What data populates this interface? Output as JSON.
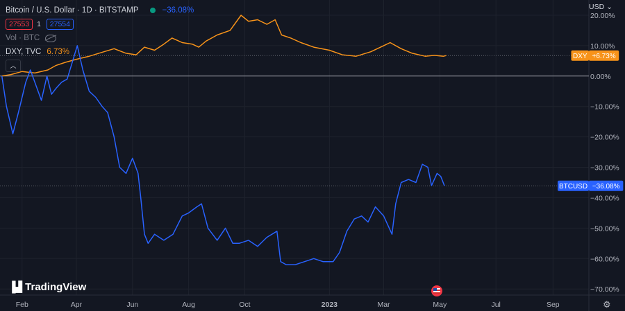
{
  "header": {
    "symbol_title": "Bitcoin / U.S. Dollar · 1D · BITSTAMP",
    "change": "−36.08%",
    "sell_price": "27553",
    "quantity": "1",
    "buy_price": "27554",
    "vol_label": "Vol · BTC",
    "compare_label": "DXY, TVC",
    "compare_change": "6.73%"
  },
  "currency": "USD",
  "branding": "TradingView",
  "colors": {
    "background": "#131722",
    "btc": "#2962ff",
    "dxy": "#f7931a",
    "grid": "#1e222d",
    "text": "#b2b5be"
  },
  "chart_data": {
    "type": "line",
    "y_unit": "percent change",
    "ylim": [
      -72,
      25
    ],
    "y_ticks": [
      "20.00%",
      "10.00%",
      "0.00%",
      "−10.00%",
      "−20.00%",
      "−30.00%",
      "−40.00%",
      "−50.00%",
      "−60.00%",
      "−70.00%"
    ],
    "y_tick_values": [
      20,
      10,
      0,
      -10,
      -20,
      -30,
      -40,
      -50,
      -60,
      -70
    ],
    "x_ticks": [
      "Feb",
      "Apr",
      "Jun",
      "Aug",
      "Oct",
      "2023",
      "Mar",
      "May",
      "Jul",
      "Sep"
    ],
    "x_tick_dates": [
      "2022-02-01",
      "2022-04-01",
      "2022-06-01",
      "2022-08-01",
      "2022-10-01",
      "2023-01-01",
      "2023-03-01",
      "2023-05-01",
      "2023-07-01",
      "2023-09-01"
    ],
    "xlim": [
      "2022-01-08",
      "2023-10-10"
    ],
    "reference_line": 0,
    "grid": true,
    "series": [
      {
        "name": "DXY",
        "label": "DXY",
        "label_value": "+6.73%",
        "color": "#f7931a",
        "points": [
          [
            "2022-01-10",
            0
          ],
          [
            "2022-01-20",
            0.5
          ],
          [
            "2022-02-01",
            1.5
          ],
          [
            "2022-02-15",
            1.0
          ],
          [
            "2022-03-01",
            2.0
          ],
          [
            "2022-03-10",
            3.5
          ],
          [
            "2022-03-20",
            4.5
          ],
          [
            "2022-04-01",
            5.5
          ],
          [
            "2022-04-15",
            6.5
          ],
          [
            "2022-05-01",
            8.0
          ],
          [
            "2022-05-12",
            9.0
          ],
          [
            "2022-05-25",
            7.5
          ],
          [
            "2022-06-05",
            7.0
          ],
          [
            "2022-06-14",
            9.5
          ],
          [
            "2022-06-25",
            8.5
          ],
          [
            "2022-07-05",
            10.5
          ],
          [
            "2022-07-14",
            12.5
          ],
          [
            "2022-07-25",
            11.0
          ],
          [
            "2022-08-05",
            10.5
          ],
          [
            "2022-08-12",
            9.5
          ],
          [
            "2022-08-20",
            11.5
          ],
          [
            "2022-09-01",
            13.5
          ],
          [
            "2022-09-15",
            15.0
          ],
          [
            "2022-09-27",
            20.0
          ],
          [
            "2022-10-05",
            18.0
          ],
          [
            "2022-10-15",
            18.5
          ],
          [
            "2022-10-25",
            17.0
          ],
          [
            "2022-11-03",
            18.5
          ],
          [
            "2022-11-10",
            13.5
          ],
          [
            "2022-11-20",
            12.5
          ],
          [
            "2022-12-01",
            11.0
          ],
          [
            "2022-12-15",
            9.5
          ],
          [
            "2023-01-01",
            8.5
          ],
          [
            "2023-01-15",
            7.0
          ],
          [
            "2023-01-30",
            6.5
          ],
          [
            "2023-02-15",
            8.0
          ],
          [
            "2023-03-01",
            10.0
          ],
          [
            "2023-03-08",
            11.0
          ],
          [
            "2023-03-20",
            9.0
          ],
          [
            "2023-04-01",
            7.5
          ],
          [
            "2023-04-15",
            6.5
          ],
          [
            "2023-04-25",
            6.8
          ],
          [
            "2023-05-05",
            6.5
          ],
          [
            "2023-05-08",
            6.73
          ]
        ]
      },
      {
        "name": "BTCUSD",
        "label": "BTCUSD",
        "label_value": "−36.08%",
        "color": "#2962ff",
        "points": [
          [
            "2022-01-10",
            0
          ],
          [
            "2022-01-15",
            -10
          ],
          [
            "2022-01-22",
            -19
          ],
          [
            "2022-01-28",
            -12
          ],
          [
            "2022-02-05",
            -2
          ],
          [
            "2022-02-10",
            2
          ],
          [
            "2022-02-16",
            -3
          ],
          [
            "2022-02-22",
            -8
          ],
          [
            "2022-02-28",
            0
          ],
          [
            "2022-03-05",
            -6
          ],
          [
            "2022-03-10",
            -4
          ],
          [
            "2022-03-16",
            -2
          ],
          [
            "2022-03-22",
            -1
          ],
          [
            "2022-03-28",
            5
          ],
          [
            "2022-04-02",
            10
          ],
          [
            "2022-04-08",
            2
          ],
          [
            "2022-04-15",
            -5
          ],
          [
            "2022-04-22",
            -7
          ],
          [
            "2022-04-29",
            -10
          ],
          [
            "2022-05-05",
            -12
          ],
          [
            "2022-05-12",
            -20
          ],
          [
            "2022-05-18",
            -30
          ],
          [
            "2022-05-25",
            -32
          ],
          [
            "2022-06-01",
            -27
          ],
          [
            "2022-06-07",
            -32
          ],
          [
            "2022-06-10",
            -40
          ],
          [
            "2022-06-14",
            -52
          ],
          [
            "2022-06-18",
            -55
          ],
          [
            "2022-06-25",
            -52
          ],
          [
            "2022-07-05",
            -54
          ],
          [
            "2022-07-15",
            -52
          ],
          [
            "2022-07-25",
            -46
          ],
          [
            "2022-08-01",
            -45
          ],
          [
            "2022-08-10",
            -43
          ],
          [
            "2022-08-15",
            -42
          ],
          [
            "2022-08-22",
            -50
          ],
          [
            "2022-09-01",
            -54
          ],
          [
            "2022-09-10",
            -50
          ],
          [
            "2022-09-18",
            -55
          ],
          [
            "2022-09-25",
            -55
          ],
          [
            "2022-10-05",
            -54
          ],
          [
            "2022-10-15",
            -56
          ],
          [
            "2022-10-25",
            -53
          ],
          [
            "2022-11-05",
            -51
          ],
          [
            "2022-11-09",
            -61
          ],
          [
            "2022-11-15",
            -62
          ],
          [
            "2022-11-25",
            -62
          ],
          [
            "2022-12-05",
            -61
          ],
          [
            "2022-12-15",
            -60
          ],
          [
            "2022-12-25",
            -61
          ],
          [
            "2023-01-05",
            -61
          ],
          [
            "2023-01-12",
            -58
          ],
          [
            "2023-01-20",
            -51
          ],
          [
            "2023-01-28",
            -47
          ],
          [
            "2023-02-05",
            -46
          ],
          [
            "2023-02-12",
            -48
          ],
          [
            "2023-02-20",
            -43
          ],
          [
            "2023-03-01",
            -46
          ],
          [
            "2023-03-10",
            -52
          ],
          [
            "2023-03-14",
            -42
          ],
          [
            "2023-03-20",
            -35
          ],
          [
            "2023-03-28",
            -34
          ],
          [
            "2023-04-05",
            -35
          ],
          [
            "2023-04-12",
            -29
          ],
          [
            "2023-04-18",
            -30
          ],
          [
            "2023-04-22",
            -36
          ],
          [
            "2023-04-28",
            -32
          ],
          [
            "2023-05-02",
            -33
          ],
          [
            "2023-05-06",
            -36.08
          ]
        ]
      }
    ]
  }
}
